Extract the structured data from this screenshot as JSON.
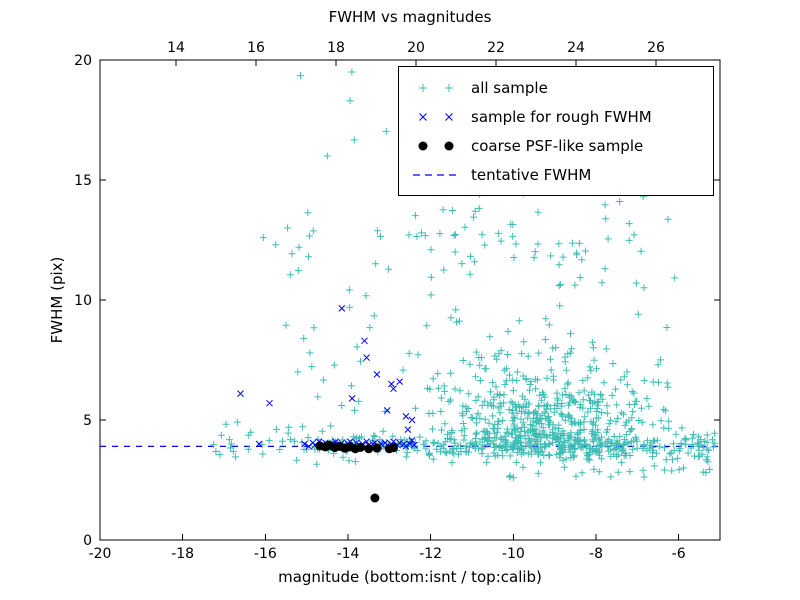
{
  "chart_data": {
    "type": "scatter",
    "title": "FWHM vs magnitudes",
    "xlabel": "magnitude (bottom:isnt / top:calib)",
    "ylabel": "FWHM (pix)",
    "xlim": [
      -20,
      -5
    ],
    "ylim": [
      0,
      20
    ],
    "x_ticks_bottom": [
      -20,
      -18,
      -16,
      -14,
      -12,
      -10,
      -8,
      -6
    ],
    "top_axis": {
      "min": 12.1,
      "max": 27.6,
      "ticks": [
        14,
        16,
        18,
        20,
        22,
        24,
        26
      ]
    },
    "y_ticks": [
      0,
      5,
      10,
      15,
      20
    ],
    "tentative_fwhm": 3.9,
    "grid": false,
    "legend_position": "upper right",
    "legend": [
      {
        "label": "all sample",
        "marker": "plus",
        "color": "#3dbdb5"
      },
      {
        "label": "sample for rough FWHM",
        "marker": "x",
        "color": "#0000ff"
      },
      {
        "label": "coarse PSF-like sample",
        "marker": "dot",
        "color": "#000000"
      },
      {
        "label": "tentative FWHM",
        "marker": "dashed",
        "color": "#0000ff"
      }
    ],
    "series": [
      {
        "name": "all sample",
        "marker": "plus",
        "color": "#3dbdb5",
        "points": [
          [
            -15.15,
            19.35
          ],
          [
            -13.95,
            18.3
          ],
          [
            -14.5,
            16.0
          ],
          [
            -16.05,
            12.6
          ],
          [
            -15.75,
            12.3
          ],
          [
            -12.35,
            18.6
          ]
        ],
        "generator": {
          "seed": 20240,
          "clusters": [
            {
              "n": 300,
              "x": {
                "dist": "uniform",
                "min": -15.4,
                "max": -5.1
              },
              "y": {
                "dist": "normal",
                "mean": 3.95,
                "sd": 0.28,
                "min": 3.1,
                "max": 4.9
              }
            },
            {
              "n": 520,
              "x": {
                "dist": "normal",
                "mean": -9.3,
                "sd": 1.25,
                "min": -13.0,
                "max": -5.1
              },
              "y": {
                "dist": "halfup",
                "base": 3.5,
                "sd": 1.9,
                "min": 3.2,
                "max": 16.0
              }
            },
            {
              "n": 130,
              "x": {
                "dist": "uniform",
                "min": -15.6,
                "max": -6.0
              },
              "y": {
                "dist": "uniform",
                "min": 4.5,
                "max": 13.8
              }
            },
            {
              "n": 60,
              "x": {
                "dist": "normal",
                "mean": -10.2,
                "sd": 1.9,
                "min": -14.6,
                "max": -6.2
              },
              "y": {
                "dist": "uniform",
                "min": 11.5,
                "max": 19.5
              }
            },
            {
              "n": 22,
              "x": {
                "dist": "uniform",
                "min": -17.3,
                "max": -15.4
              },
              "y": {
                "dist": "normal",
                "mean": 4.1,
                "sd": 0.6,
                "min": 3.3,
                "max": 6.3
              }
            },
            {
              "n": 40,
              "x": {
                "dist": "uniform",
                "min": -10.5,
                "max": -5.2
              },
              "y": {
                "dist": "uniform",
                "min": 2.6,
                "max": 3.6
              }
            }
          ]
        }
      },
      {
        "name": "sample for rough FWHM",
        "marker": "x",
        "color": "#0000ff",
        "points": [
          [
            -15.05,
            4.0
          ],
          [
            -14.95,
            3.9
          ],
          [
            -14.85,
            4.05
          ],
          [
            -14.8,
            3.95
          ],
          [
            -14.7,
            4.1
          ],
          [
            -14.6,
            3.95
          ],
          [
            -14.55,
            4.05
          ],
          [
            -14.45,
            3.9
          ],
          [
            -14.4,
            4.0
          ],
          [
            -14.3,
            4.1
          ],
          [
            -14.25,
            3.95
          ],
          [
            -14.15,
            4.05
          ],
          [
            -14.1,
            3.9
          ],
          [
            -14.0,
            4.0
          ],
          [
            -13.95,
            4.1
          ],
          [
            -13.85,
            3.95
          ],
          [
            -13.8,
            4.05
          ],
          [
            -13.7,
            3.9
          ],
          [
            -13.65,
            4.0
          ],
          [
            -13.55,
            4.1
          ],
          [
            -13.5,
            3.95
          ],
          [
            -13.4,
            4.0
          ],
          [
            -13.35,
            4.05
          ],
          [
            -13.25,
            3.9
          ],
          [
            -13.2,
            4.0
          ],
          [
            -13.1,
            4.05
          ],
          [
            -13.05,
            3.95
          ],
          [
            -12.95,
            4.0
          ],
          [
            -12.9,
            4.1
          ],
          [
            -12.8,
            3.95
          ],
          [
            -12.75,
            4.05
          ],
          [
            -12.65,
            4.0
          ],
          [
            -12.6,
            3.9
          ],
          [
            -12.5,
            4.0
          ],
          [
            -12.45,
            4.15
          ],
          [
            -12.4,
            3.95
          ],
          [
            -16.6,
            6.1
          ],
          [
            -16.15,
            4.0
          ],
          [
            -15.9,
            5.7
          ],
          [
            -14.15,
            9.65
          ],
          [
            -13.9,
            5.9
          ],
          [
            -13.6,
            8.3
          ],
          [
            -13.55,
            7.6
          ],
          [
            -13.3,
            6.9
          ],
          [
            -13.05,
            5.4
          ],
          [
            -12.95,
            6.5
          ],
          [
            -12.9,
            6.3
          ],
          [
            -12.75,
            6.6
          ],
          [
            -12.6,
            5.15
          ],
          [
            -12.55,
            4.6
          ],
          [
            -12.45,
            5.0
          ]
        ]
      },
      {
        "name": "coarse PSF-like sample",
        "marker": "dot",
        "color": "#000000",
        "points": [
          [
            -14.68,
            3.92
          ],
          [
            -14.55,
            3.88
          ],
          [
            -14.45,
            3.95
          ],
          [
            -14.32,
            3.85
          ],
          [
            -14.2,
            3.9
          ],
          [
            -14.08,
            3.82
          ],
          [
            -13.95,
            3.88
          ],
          [
            -13.82,
            3.8
          ],
          [
            -13.7,
            3.86
          ],
          [
            -13.5,
            3.8
          ],
          [
            -13.3,
            3.83
          ],
          [
            -13.0,
            3.8
          ],
          [
            -12.9,
            3.84
          ],
          [
            -13.35,
            1.75
          ]
        ]
      },
      {
        "name": "tentative FWHM",
        "marker": "dashed",
        "color": "#0000ff",
        "style": "dashed",
        "line_y": 3.9
      }
    ]
  }
}
